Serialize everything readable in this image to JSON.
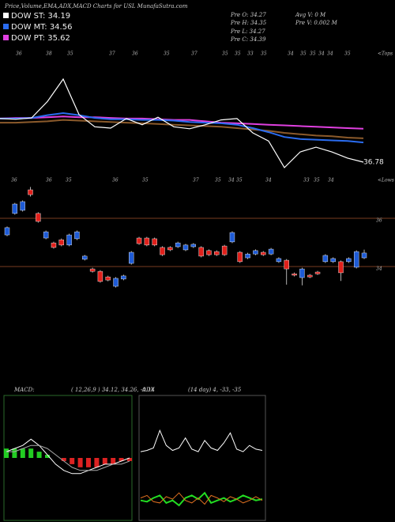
{
  "chart_data": [
    {
      "type": "line",
      "title": "Price,Volume,EMA,ADX,MACD Charts for USL MunafaSutra.com",
      "annotations": [
        "Pre  O: 34.27",
        "Pre  H: 34.35",
        "Pre  L: 34.27",
        "Pre  C: 34.39",
        "Avg V: 0  M",
        "Pre  V: 0.002  M"
      ],
      "end_label": "36.78",
      "tops_label": "<Tops",
      "tops": [
        "36",
        "38",
        "35",
        "37",
        "36",
        "35",
        "37",
        "35",
        "35",
        "33",
        "35",
        "34",
        "35",
        "35",
        "34",
        "34",
        "35"
      ],
      "lows_label": "<Lows",
      "lows": [
        "36",
        "36",
        "35",
        "36",
        "35",
        "37",
        "35",
        "34",
        "35",
        "34",
        "33",
        "35",
        "34"
      ],
      "ylim": [
        36.49,
        38.29
      ],
      "series": [
        {
          "color": "#8b5a2b",
          "values": [
            37.36,
            37.36,
            37.37,
            37.38,
            37.4,
            37.39,
            37.38,
            37.37,
            37.36,
            37.35,
            37.34,
            37.33,
            37.32,
            37.31,
            37.3,
            37.28,
            37.26,
            37.24,
            37.21,
            37.19,
            37.17,
            37.16,
            37.14,
            37.13
          ]
        },
        {
          "name": "DOW PT: 35.62",
          "color": "#e040e0",
          "values": [
            37.42,
            37.43,
            37.43,
            37.44,
            37.45,
            37.44,
            37.44,
            37.43,
            37.42,
            37.42,
            37.41,
            37.4,
            37.4,
            37.38,
            37.36,
            37.35,
            37.34,
            37.33,
            37.32,
            37.31,
            37.3,
            37.29,
            37.28,
            37.27
          ]
        },
        {
          "name": "DOW MT: 34.56",
          "color": "#2a6cf0",
          "values": [
            37.42,
            37.42,
            37.43,
            37.47,
            37.5,
            37.47,
            37.43,
            37.41,
            37.41,
            37.4,
            37.4,
            37.39,
            37.37,
            37.36,
            37.35,
            37.33,
            37.28,
            37.22,
            37.15,
            37.12,
            37.11,
            37.1,
            37.09,
            37.07
          ]
        },
        {
          "name": "DOW ST: 34.19",
          "color": "#ffffff",
          "values": [
            37.42,
            37.41,
            37.43,
            37.67,
            38.0,
            37.48,
            37.3,
            37.28,
            37.42,
            37.33,
            37.44,
            37.3,
            37.27,
            37.33,
            37.4,
            37.42,
            37.21,
            37.09,
            36.7,
            36.93,
            37.0,
            36.93,
            36.84,
            36.78
          ]
        }
      ]
    },
    {
      "type": "candlestick",
      "ylim": [
        32.7,
        37.6
      ],
      "yticks": [
        36,
        34
      ],
      "up_color": "#1e5bd6",
      "down_color": "#e0201b",
      "open": [
        35.31,
        36.2,
        36.33,
        37.18,
        36.2,
        35.18,
        34.98,
        35.11,
        34.89,
        35.15,
        34.3,
        33.9,
        33.8,
        33.57,
        33.18,
        33.48,
        34.13,
        35.18,
        35.18,
        35.15,
        34.79,
        34.79,
        34.82,
        34.69,
        34.82,
        34.79,
        34.66,
        34.62,
        34.85,
        35.02,
        34.59,
        34.36,
        34.52,
        34.59,
        34.52,
        34.2,
        34.26,
        33.7,
        33.54,
        33.64,
        33.77,
        34.2,
        34.2,
        34.2,
        34.2,
        33.97,
        34.36
      ],
      "high": [
        35.66,
        36.64,
        36.74,
        37.3,
        36.25,
        35.49,
        35.03,
        35.16,
        35.36,
        35.49,
        34.48,
        33.95,
        33.85,
        33.62,
        33.56,
        33.66,
        34.64,
        35.23,
        35.23,
        35.2,
        34.84,
        34.84,
        35.03,
        34.94,
        34.97,
        34.84,
        34.71,
        34.67,
        34.9,
        35.46,
        34.64,
        34.57,
        34.71,
        34.64,
        34.77,
        34.38,
        34.31,
        33.75,
        33.95,
        33.69,
        33.82,
        34.51,
        34.38,
        34.25,
        34.38,
        34.67,
        34.7
      ],
      "low": [
        35.26,
        36.15,
        36.28,
        36.9,
        35.82,
        35.13,
        34.74,
        34.84,
        34.84,
        35.1,
        34.25,
        33.75,
        33.33,
        33.39,
        33.13,
        33.43,
        34.08,
        34.9,
        34.84,
        34.84,
        34.44,
        34.64,
        34.77,
        34.64,
        34.77,
        34.38,
        34.44,
        34.44,
        34.44,
        34.97,
        34.15,
        34.31,
        34.47,
        34.44,
        34.47,
        34.15,
        33.25,
        33.59,
        33.22,
        33.52,
        33.65,
        34.15,
        34.15,
        33.4,
        34.15,
        33.92,
        34.31
      ],
      "close": [
        35.61,
        36.59,
        36.69,
        36.98,
        35.87,
        35.44,
        34.79,
        34.89,
        35.31,
        35.44,
        34.43,
        33.8,
        33.38,
        33.44,
        33.51,
        33.61,
        34.59,
        34.95,
        34.89,
        34.89,
        34.49,
        34.69,
        34.98,
        34.89,
        34.92,
        34.43,
        34.49,
        34.49,
        34.49,
        35.41,
        34.2,
        34.52,
        34.66,
        34.49,
        34.72,
        34.33,
        33.9,
        33.64,
        33.9,
        33.57,
        33.7,
        34.46,
        34.33,
        33.74,
        34.33,
        34.62,
        34.56
      ]
    },
    {
      "type": "macd",
      "label": "MACD:",
      "params": "( 12,26,9 ) 34.12, 34.26, -0.14",
      "ylim": [
        -20,
        20
      ],
      "histogram": [
        3,
        3,
        3,
        3,
        2,
        1,
        0,
        -1,
        -2,
        -3,
        -3,
        -3,
        -2,
        -2,
        -1,
        -1
      ],
      "series": [
        {
          "color": "#ffffff",
          "values": [
            2,
            3,
            4,
            6,
            4,
            1,
            -2,
            -4,
            -5,
            -5,
            -4,
            -3,
            -2,
            -2,
            -1,
            0
          ]
        },
        {
          "color": "#aaaaaa",
          "values": [
            2,
            2,
            3,
            4,
            4,
            3,
            1,
            -1,
            -3,
            -4,
            -4,
            -4,
            -3,
            -2,
            -2,
            -1
          ]
        }
      ]
    },
    {
      "type": "adx",
      "label": "ADX",
      "params": "(14  day) 4, -33, -35",
      "ylim": [
        0,
        100
      ],
      "series": [
        {
          "color": "#ffffff",
          "values": [
            55,
            56,
            58,
            72,
            60,
            56,
            58,
            66,
            57,
            55,
            64,
            58,
            56,
            62,
            70,
            57,
            55,
            60,
            57,
            56
          ]
        },
        {
          "color": "#22dd22",
          "values": [
            16,
            15,
            18,
            20,
            14,
            16,
            12,
            18,
            20,
            17,
            22,
            14,
            16,
            18,
            15,
            17,
            20,
            18,
            16,
            17
          ]
        },
        {
          "color": "#e07020",
          "values": [
            18,
            20,
            15,
            14,
            19,
            17,
            22,
            16,
            14,
            18,
            13,
            20,
            18,
            15,
            19,
            17,
            14,
            16,
            19,
            16
          ]
        }
      ]
    }
  ]
}
